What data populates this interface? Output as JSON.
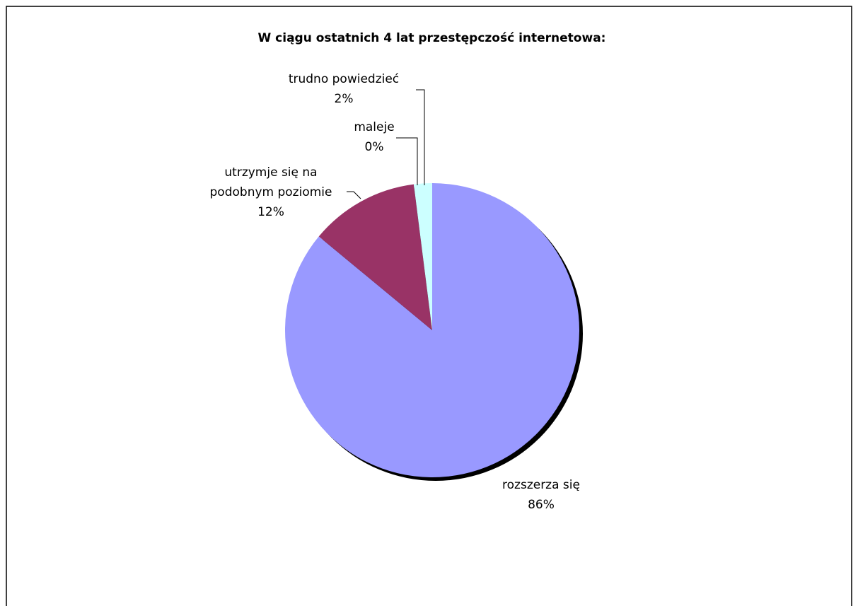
{
  "chart_data": {
    "type": "pie",
    "title": "W ciągu ostatnich 4 lat przestępczość internetowa:",
    "categories": [
      "rozszerza się",
      "utrzymje się na podobnym poziomie",
      "maleje",
      "trudno powiedzieć"
    ],
    "values": [
      86,
      12,
      0,
      2
    ],
    "value_labels": [
      "86%",
      "12%",
      "0%",
      "2%"
    ],
    "colors": [
      "#9999ff",
      "#993366",
      "#ffffcc",
      "#ccffff"
    ]
  }
}
